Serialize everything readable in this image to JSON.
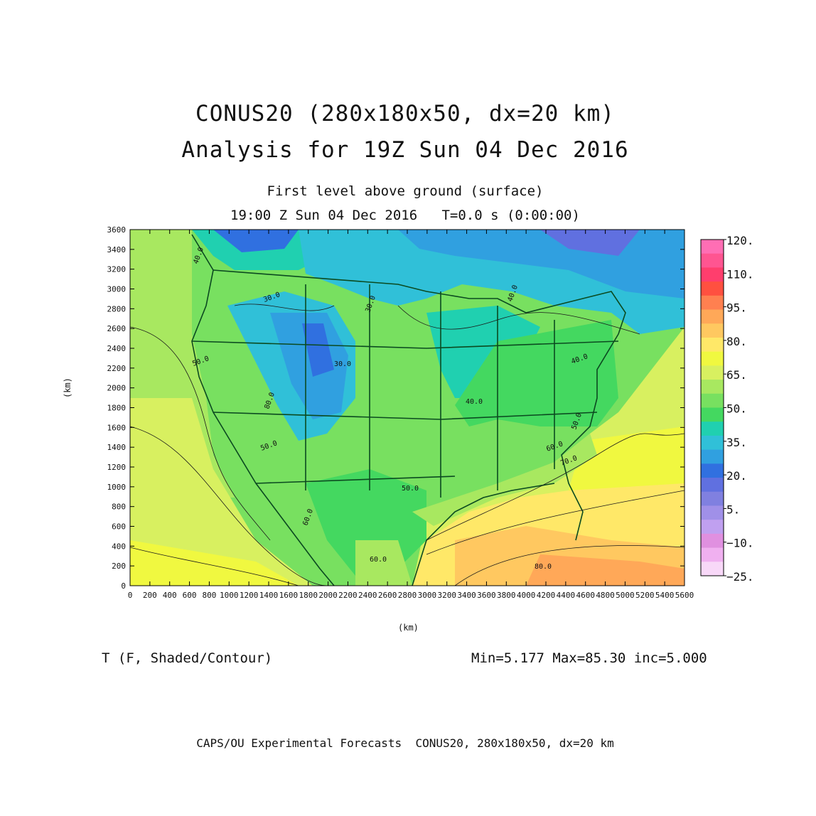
{
  "titles": {
    "line1": "CONUS20 (280x180x50, dx=20 km)",
    "line2": "Analysis for 19Z Sun 04 Dec 2016",
    "sub1": "First level above ground (surface)",
    "sub2": "19:00 Z Sun 04 Dec 2016   T=0.0 s (0:00:00)"
  },
  "axes": {
    "x_label": "(km)",
    "y_label": "(km)",
    "x_ticks": [
      "0",
      "200",
      "400",
      "600",
      "800",
      "1000",
      "1200",
      "1400",
      "1600",
      "1800",
      "2000",
      "2200",
      "2400",
      "2600",
      "2800",
      "3000",
      "3200",
      "3400",
      "3600",
      "3800",
      "4000",
      "4200",
      "4400",
      "4600",
      "4800",
      "5000",
      "5200",
      "5400",
      "5600"
    ],
    "y_ticks": [
      "0",
      "200",
      "400",
      "600",
      "800",
      "1000",
      "1200",
      "1400",
      "1600",
      "1800",
      "2000",
      "2200",
      "2400",
      "2600",
      "2800",
      "3000",
      "3200",
      "3400",
      "3600"
    ],
    "xlim": [
      0,
      5600
    ],
    "ylim": [
      0,
      3600
    ]
  },
  "colorbar": {
    "colors": [
      "#ff6eb4",
      "#ff5591",
      "#ff3e6d",
      "#ff5040",
      "#ff8050",
      "#ffa858",
      "#ffc860",
      "#ffe868",
      "#f0f840",
      "#d8f060",
      "#a8e860",
      "#78e060",
      "#44d860",
      "#20d0b0",
      "#30c0d8",
      "#30a0e0",
      "#3070e0",
      "#6070e0",
      "#8080e0",
      "#a090e8",
      "#c0a0f0",
      "#e090e0",
      "#f0b0f0",
      "#f8d8f8"
    ],
    "labels": [
      "120.",
      "110.",
      "95.",
      "80.",
      "65.",
      "50.",
      "35.",
      "20.",
      "5.",
      "−10.",
      "−25."
    ]
  },
  "contour_labels": [
    "40.0",
    "30.0",
    "30.0",
    "30.0",
    "50.0",
    "40.0",
    "40.0",
    "40.0",
    "50.0",
    "50.0",
    "60.0",
    "60.0",
    "60.0",
    "70.0",
    "80.0",
    "80.0",
    "50.0"
  ],
  "variable": "T (F, Shaded/Contour)",
  "stats": "Min=5.177 Max=85.30 inc=5.000",
  "footer": "CAPS/OU Experimental Forecasts  CONUS20, 280x180x50, dx=20 km"
}
